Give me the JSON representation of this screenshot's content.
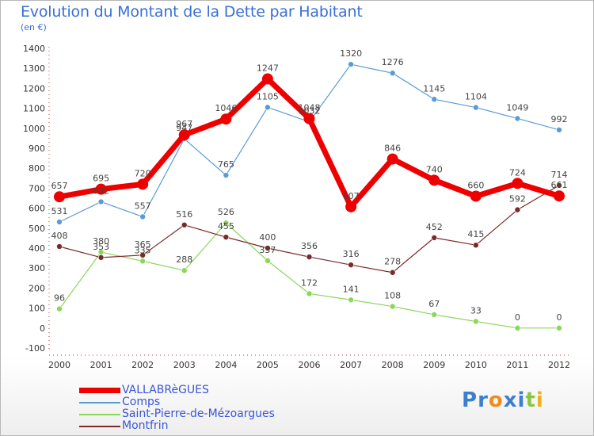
{
  "title": "Evolution du Montant de la Dette par Habitant",
  "subtitle": "(en €)",
  "logo": {
    "text": "Proxiti",
    "letters": [
      "P",
      "r",
      "o",
      "x",
      "i",
      "t",
      "i"
    ],
    "colors": [
      "#3a7fd0",
      "#3a7fd0",
      "#f08a1c",
      "#3a7fd0",
      "#3a7fd0",
      "#8cc63e",
      "#f0b01c"
    ]
  },
  "chart_data": {
    "type": "line",
    "x": [
      "2000",
      "2001",
      "2002",
      "2003",
      "2004",
      "2005",
      "2006",
      "2007",
      "2008",
      "2009",
      "2010",
      "2011",
      "2012"
    ],
    "ylim": [
      -100,
      1400
    ],
    "yticks": [
      -100,
      0,
      100,
      200,
      300,
      400,
      500,
      600,
      700,
      800,
      900,
      1000,
      1100,
      1200,
      1300,
      1400
    ],
    "grid": false,
    "legend_position": "bottom-left",
    "series": [
      {
        "name": "VALLABRèGUES",
        "color": "#ee0000",
        "width": 7,
        "marker": 7,
        "values": [
          657,
          695,
          720,
          967,
          1046,
          1247,
          1048,
          607,
          846,
          740,
          660,
          724,
          661
        ]
      },
      {
        "name": "Comps",
        "color": "#5b9bd5",
        "width": 1.2,
        "marker": 3.5,
        "values": [
          531,
          632,
          557,
          947,
          765,
          1105,
          1032,
          1320,
          1276,
          1145,
          1104,
          1049,
          992
        ]
      },
      {
        "name": "Saint-Pierre-de-Mézoargues",
        "color": "#8cd65a",
        "width": 1.2,
        "marker": 3.5,
        "values": [
          96,
          380,
          335,
          288,
          526,
          337,
          172,
          141,
          108,
          67,
          33,
          0,
          0
        ]
      },
      {
        "name": "Montfrin",
        "color": "#7a2a2a",
        "width": 1.2,
        "marker": 3.5,
        "values": [
          408,
          353,
          365,
          516,
          455,
          400,
          356,
          316,
          278,
          452,
          415,
          592,
          714
        ]
      }
    ]
  }
}
